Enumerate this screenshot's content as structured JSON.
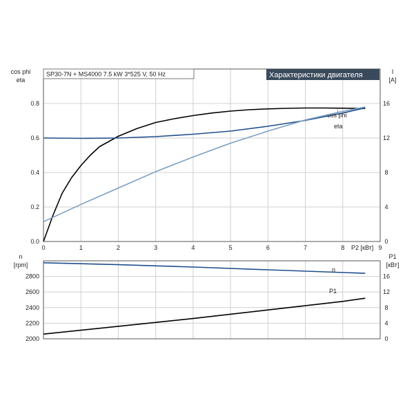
{
  "chart_data": [
    {
      "type": "line",
      "title": "Характеристики двигателя",
      "info": "SP30-7N + MS4000   7.5 kW   3*525 V, 50 Hz",
      "xlabel": "P2 [кВт]",
      "xlim": [
        0,
        9
      ],
      "xticks": [
        0,
        1,
        2,
        3,
        4,
        5,
        6,
        7,
        8,
        9
      ],
      "ylabel_left": [
        "cos phi",
        "eta"
      ],
      "ylim_left": [
        0,
        1.0
      ],
      "yticks_left": [
        0.0,
        0.2,
        0.4,
        0.6,
        0.8
      ],
      "ylabel_right": [
        "I",
        "[A]"
      ],
      "ylim_right": [
        0,
        20
      ],
      "yticks_right": [
        0,
        4,
        8,
        12,
        16
      ],
      "grid": true,
      "series": [
        {
          "name": "eta",
          "axis": "left",
          "color": "#000000",
          "x": [
            0,
            0.25,
            0.5,
            0.75,
            1.0,
            1.25,
            1.5,
            1.75,
            2.0,
            2.5,
            3.0,
            3.5,
            4.0,
            4.5,
            5.0,
            5.5,
            6.0,
            6.5,
            7.0,
            7.5,
            8.0,
            8.6
          ],
          "y": [
            0.0,
            0.15,
            0.28,
            0.37,
            0.44,
            0.5,
            0.55,
            0.58,
            0.61,
            0.655,
            0.69,
            0.712,
            0.73,
            0.745,
            0.756,
            0.764,
            0.769,
            0.772,
            0.774,
            0.774,
            0.773,
            0.771
          ]
        },
        {
          "name": "cos phi",
          "axis": "left",
          "color": "#1f4e8c",
          "x": [
            0,
            1,
            2,
            3,
            4,
            5,
            6,
            7,
            8,
            8.6
          ],
          "y": [
            0.6,
            0.598,
            0.6,
            0.608,
            0.622,
            0.64,
            0.668,
            0.702,
            0.745,
            0.775
          ]
        },
        {
          "name": "I",
          "axis": "right",
          "color": "#7a9fc4",
          "x": [
            0,
            1,
            2,
            3,
            4,
            5,
            6,
            7,
            8,
            8.6
          ],
          "y": [
            2.3,
            4.3,
            6.2,
            8.1,
            9.8,
            11.4,
            12.8,
            14.1,
            15.1,
            15.6
          ]
        }
      ]
    },
    {
      "type": "line",
      "xlim": [
        0,
        9
      ],
      "ylabel_left": [
        "n",
        "[rpm]"
      ],
      "ylim_left": [
        2000,
        3000
      ],
      "yticks_left": [
        2000,
        2200,
        2400,
        2600,
        2800
      ],
      "ylabel_right": [
        "P1",
        "[кВт]"
      ],
      "ylim_right": [
        0,
        20
      ],
      "yticks_right": [
        0,
        4,
        8,
        12,
        16
      ],
      "grid": true,
      "series": [
        {
          "name": "n",
          "axis": "left",
          "color": "#1f4e8c",
          "x": [
            0,
            2,
            4,
            6,
            8.6
          ],
          "y": [
            2975,
            2950,
            2920,
            2885,
            2840
          ]
        },
        {
          "name": "P1",
          "axis": "right",
          "color": "#000000",
          "x": [
            0,
            2,
            4,
            6,
            8,
            8.6
          ],
          "y": [
            1.2,
            3.2,
            5.2,
            7.4,
            9.6,
            10.4
          ]
        }
      ]
    }
  ]
}
